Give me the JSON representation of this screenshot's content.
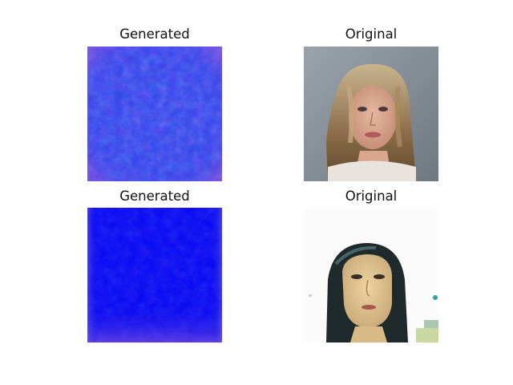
{
  "figure": {
    "panels": [
      {
        "title": "Generated",
        "kind": "generated"
      },
      {
        "title": "Original",
        "kind": "original-photo"
      },
      {
        "title": "Generated",
        "kind": "generated"
      },
      {
        "title": "Original",
        "kind": "original-photo"
      }
    ]
  }
}
